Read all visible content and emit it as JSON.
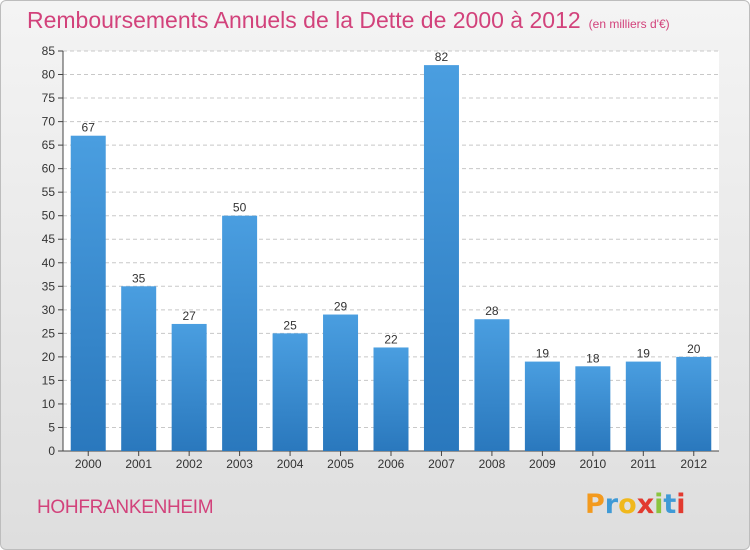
{
  "header": {
    "title": "Remboursements Annuels de la Dette de 2000 à 2012",
    "subtitle": "(en milliers d'€)"
  },
  "footer": {
    "commune": "HOHFRANKENHEIM",
    "logo_text": "Proxiti",
    "logo_letter_colors": [
      "#f39a1e",
      "#3f9ad6",
      "#f0b81c",
      "#e23a2f",
      "#8bc43f",
      "#3f9ad6",
      "#e23a2f"
    ]
  },
  "colors": {
    "bar": "#4a9ee0",
    "bar_dark": "#2a78bd",
    "title": "#d2427b",
    "grid": "#c8c8c8"
  },
  "chart_data": {
    "type": "bar",
    "title": "Remboursements Annuels de la Dette de 2000 à 2012",
    "subtitle": "(en milliers d'€)",
    "categories": [
      "2000",
      "2001",
      "2002",
      "2003",
      "2004",
      "2005",
      "2006",
      "2007",
      "2008",
      "2009",
      "2010",
      "2011",
      "2012"
    ],
    "values": [
      67,
      35,
      27,
      50,
      25,
      29,
      22,
      82,
      28,
      19,
      18,
      19,
      20
    ],
    "ylim": [
      0,
      85
    ],
    "yticks": [
      0,
      5,
      10,
      15,
      20,
      25,
      30,
      35,
      40,
      45,
      50,
      55,
      60,
      65,
      70,
      75,
      80,
      85
    ],
    "grid": true,
    "legend": "none"
  }
}
